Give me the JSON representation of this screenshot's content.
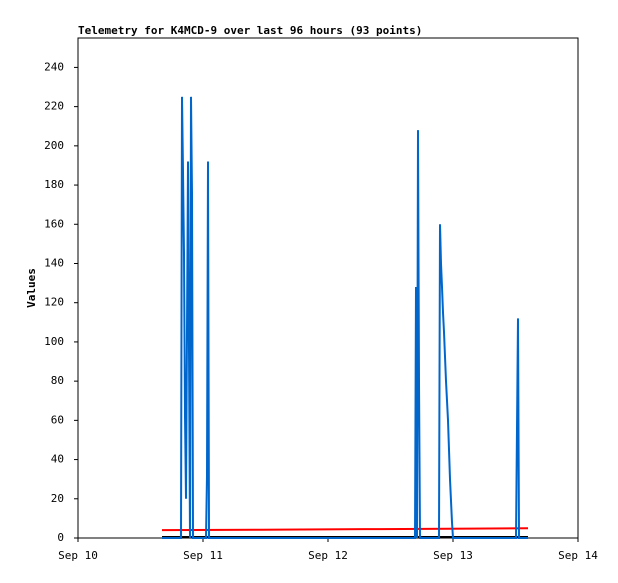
{
  "chart_data": {
    "type": "line",
    "title": "Telemetry for K4MCD-9 over last 96 hours (93 points)",
    "y_label": "Values",
    "xlim": [
      10,
      14
    ],
    "xticks": [
      {
        "value": 10,
        "label": "Sep 10"
      },
      {
        "value": 11,
        "label": "Sep 11"
      },
      {
        "value": 12,
        "label": "Sep 12"
      },
      {
        "value": 13,
        "label": "Sep 13"
      },
      {
        "value": 14,
        "label": "Sep 14"
      }
    ],
    "ylim": [
      0,
      255
    ],
    "yticks": [
      0,
      20,
      40,
      60,
      80,
      100,
      120,
      140,
      160,
      180,
      200,
      220,
      240
    ],
    "series": [
      {
        "color": "#ff0000",
        "x": [
          10.672,
          11.456,
          12.296,
          13.136,
          13.6
        ],
        "values": [
          4,
          4.2,
          4.5,
          4.8,
          5
        ]
      },
      {
        "color": "#000000",
        "x": [
          10.672,
          13.6
        ],
        "values": [
          0.5,
          0.5
        ]
      },
      {
        "color": "#0066cc",
        "x": [
          10.672,
          10.824,
          10.832,
          10.84,
          10.848,
          10.856,
          10.864,
          10.88,
          10.888,
          10.896,
          10.904,
          10.912,
          10.92,
          11.024,
          11.032,
          11.04,
          11.048,
          12.696,
          12.704,
          12.712,
          12.72,
          12.728,
          12.736,
          12.888,
          12.896,
          12.904,
          12.912,
          12.92,
          12.928,
          12.944,
          12.96,
          12.976,
          12.992,
          13.0,
          13.504,
          13.512,
          13.52,
          13.528,
          13.6
        ],
        "values": [
          0,
          0,
          225,
          187,
          145,
          62,
          20,
          192,
          96,
          0,
          225,
          176,
          0,
          0,
          32,
          192,
          0,
          0,
          128,
          0,
          208,
          80,
          0,
          0,
          160,
          140,
          128,
          115,
          105,
          80,
          60,
          30,
          8,
          0,
          0,
          56,
          112,
          0,
          0
        ]
      }
    ]
  }
}
